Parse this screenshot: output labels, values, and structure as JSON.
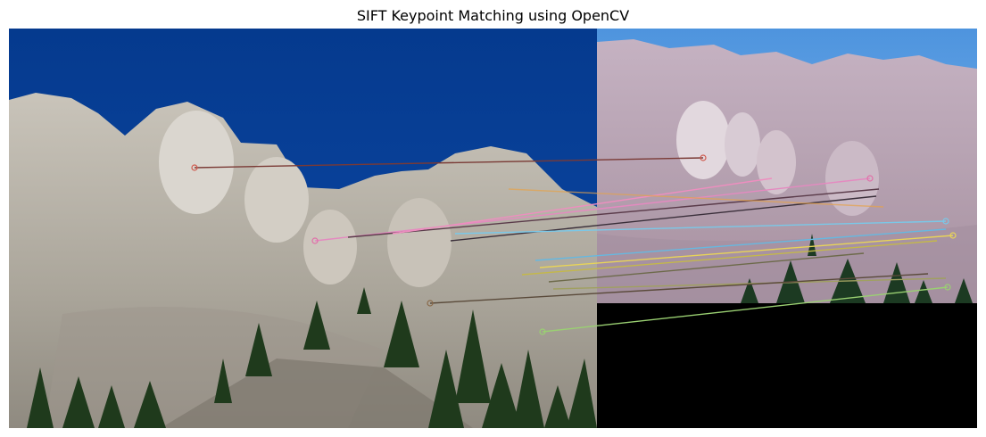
{
  "title": "SIFT Keypoint Matching using OpenCV",
  "colors": {
    "sky_left": "#0a3f96",
    "sky_right": "#5aa0e4",
    "rock_left": "#bdb8ae",
    "rock_right": "#b7a3b3",
    "black_pad": "#000000"
  },
  "match_colors": [
    "#d05a4e",
    "#8a4f9a",
    "#e070a8",
    "#e892c8",
    "#7ac8e8",
    "#66d0ec",
    "#e8d458",
    "#c4b84a",
    "#9ad072",
    "#e6a24a",
    "#5a4a3a",
    "#a0a060"
  ]
}
